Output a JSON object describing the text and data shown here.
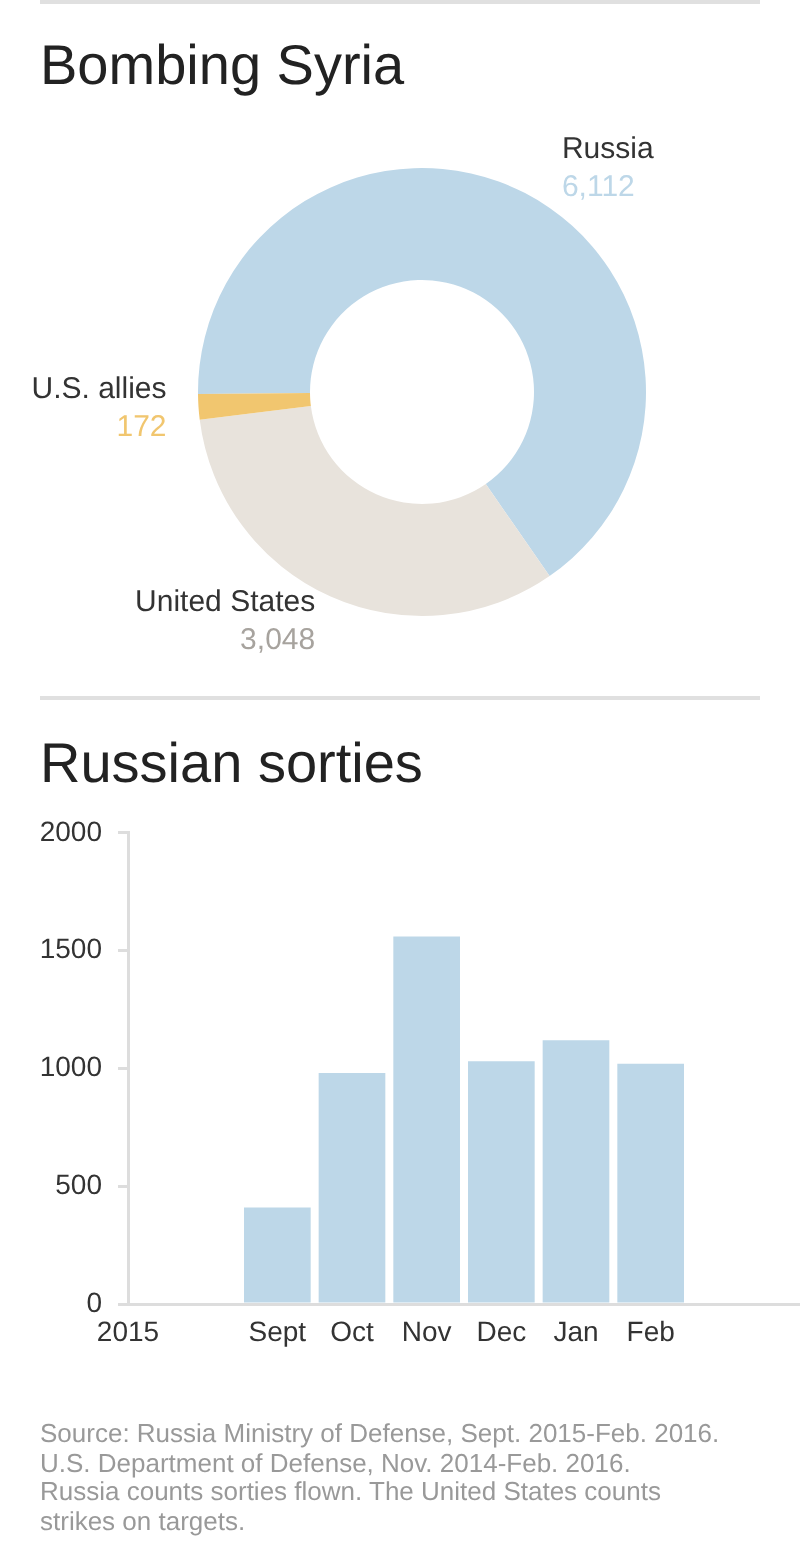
{
  "chart_data": [
    {
      "type": "donut",
      "title": "Bombing Syria",
      "categories": [
        "Russia",
        "United States",
        "U.S. allies"
      ],
      "values": [
        6112,
        3048,
        172
      ],
      "colors": [
        "#bdd7e8",
        "#e8e3dc",
        "#f1c66f"
      ],
      "value_labels": [
        "6,112",
        "3,048",
        "172"
      ]
    },
    {
      "type": "bar",
      "title": "Russian sorties",
      "categories": [
        "Sept",
        "Oct",
        "Nov",
        "Dec",
        "Jan",
        "Feb"
      ],
      "values": [
        410,
        980,
        1560,
        1030,
        1120,
        1020
      ],
      "color": "#bdd7e8",
      "ylim": [
        0,
        2000
      ],
      "yticks": [
        0,
        500,
        1000,
        1500,
        2000
      ],
      "grid": false,
      "annotations": [
        "2015",
        "Source: Russia Ministry of Defense, Sept. 2015-Feb. 2016. U.S. Department of Defense, Nov. 2014-Feb. 2016.",
        "Russia counts sorties flown. The United States counts strikes on targets."
      ]
    }
  ]
}
